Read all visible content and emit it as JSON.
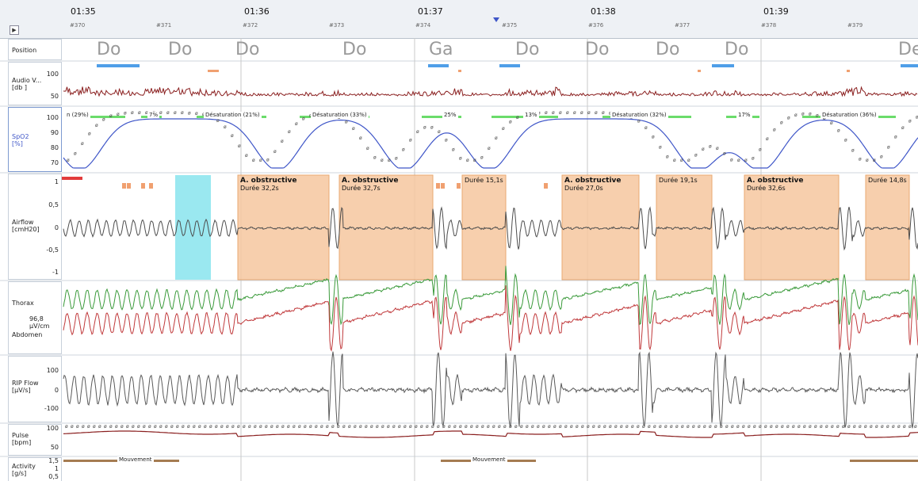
{
  "header": {
    "times": [
      "01:35",
      "01:36",
      "01:37",
      "01:38",
      "01:39"
    ],
    "epochs": [
      "#370",
      "#371",
      "#372",
      "#373",
      "#374",
      "#375",
      "#376",
      "#377",
      "#378",
      "#379"
    ],
    "expand_glyph": "▶"
  },
  "channels": {
    "position": {
      "label": "Position"
    },
    "audio": {
      "label": "Audio V...",
      "unit": "[db ]",
      "ticks": [
        "100",
        "50"
      ]
    },
    "spo2": {
      "label": "SpO2",
      "unit": "[%]",
      "ticks": [
        "100",
        "90",
        "80",
        "70"
      ]
    },
    "airflow": {
      "label": "Airflow",
      "unit": "[cmH20]",
      "ticks": [
        "1",
        "0,5",
        "0",
        "-0,5",
        "-1"
      ]
    },
    "thorax": {
      "label": "Thorax",
      "value": "96,8 µV/cm",
      "label2": "Abdomen"
    },
    "rip": {
      "label": "RIP Flow",
      "unit": "[µV/s]",
      "ticks": [
        "100",
        "0",
        "-100"
      ]
    },
    "pulse": {
      "label": "Pulse",
      "unit": "[bpm]",
      "ticks": [
        "100",
        "50"
      ]
    },
    "activity": {
      "label": "Activity",
      "unit": "[g/s]",
      "ticks": [
        "1,5",
        "1",
        "0,5"
      ]
    }
  },
  "positions": [
    "Do",
    "Do",
    "Do",
    "Do",
    "Ga",
    "Do",
    "Do",
    "Do",
    "Do",
    "De"
  ],
  "desaturations": [
    "n (29%)",
    "7%",
    "Désaturation (21%)",
    "Désaturation (33%)",
    "25%",
    "13%",
    "Désaturation (32%)",
    "17%",
    "Désaturation (36%)"
  ],
  "events": [
    {
      "title": "A. obstructive",
      "duration": "Durée 32,2s"
    },
    {
      "title": "A. obstructive",
      "duration": "Durée 32,7s"
    },
    {
      "title": "",
      "duration": "Durée 15,1s"
    },
    {
      "title": "A. obstructive",
      "duration": "Durée 27,0s"
    },
    {
      "title": "",
      "duration": "Durée 19,1s"
    },
    {
      "title": "A. obstructive",
      "duration": "Durée 32,6s"
    },
    {
      "title": "",
      "duration": "Durée 14,8s"
    }
  ],
  "movements": [
    "Mouvement",
    "Mouvement"
  ],
  "colors": {
    "airflow": "#4d4d4d",
    "thorax": "#3a9a3a",
    "abdomen": "#c0393b",
    "audio": "#8a1f1f",
    "spo2": "#3f56c8",
    "pulse": "#8a1f1f",
    "event_fill": "#f6c79f",
    "event_border": "#e59a5a",
    "artifact": "#8fe6ee",
    "desat_bar": "#6bdc6b",
    "position_bar": "#4f9ee8",
    "movement_bar": "#a57c52"
  }
}
